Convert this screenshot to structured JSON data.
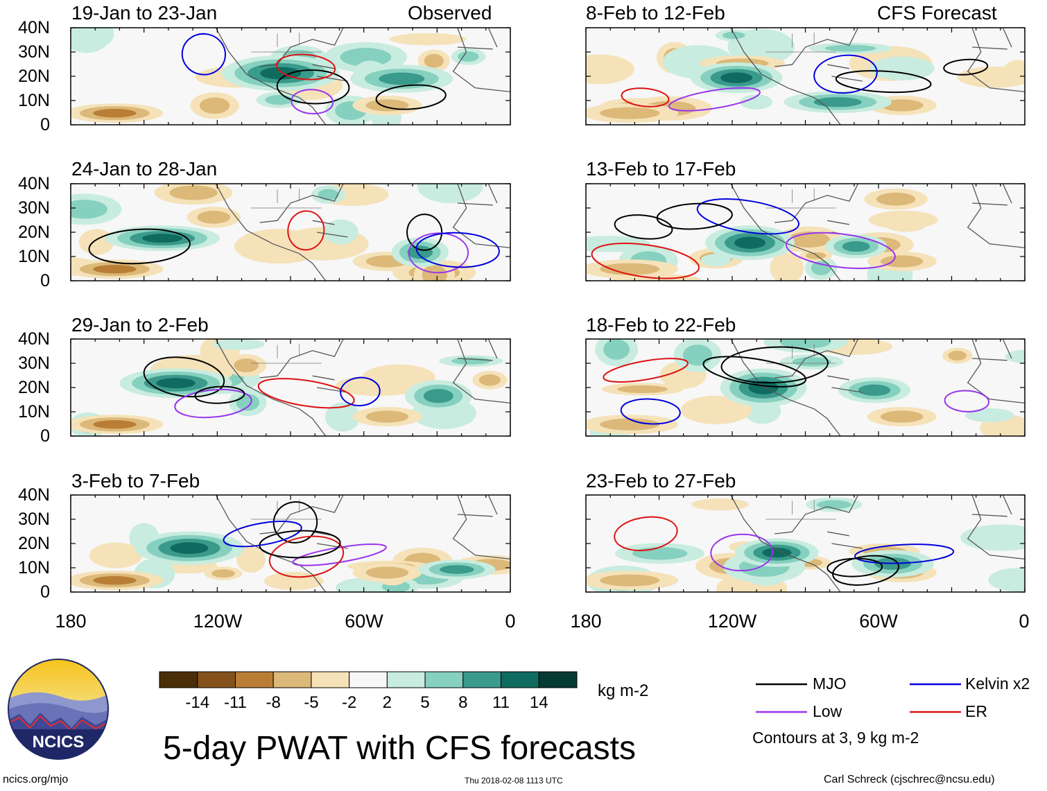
{
  "title": "5-day PWAT with CFS forecasts",
  "observed_label": "Observed",
  "forecast_label": "CFS Forecast",
  "panels_left": [
    {
      "period": "19-Jan to 23-Jan"
    },
    {
      "period": "24-Jan to 28-Jan"
    },
    {
      "period": "29-Jan to 2-Feb"
    },
    {
      "period": "3-Feb to 7-Feb"
    }
  ],
  "panels_right": [
    {
      "period": "8-Feb to 12-Feb"
    },
    {
      "period": "13-Feb to 17-Feb"
    },
    {
      "period": "18-Feb to 22-Feb"
    },
    {
      "period": "23-Feb to 27-Feb"
    }
  ],
  "lat_labels": [
    "40N",
    "30N",
    "20N",
    "10N",
    "0"
  ],
  "lon_labels": [
    "180",
    "120W",
    "60W",
    "0"
  ],
  "colorbar": {
    "unit": "kg m-2",
    "colors": [
      "#4a2e08",
      "#84521a",
      "#b97e36",
      "#dcb979",
      "#f5e2b9",
      "#f7f7f7",
      "#c8ecdf",
      "#86d0bf",
      "#3a9a8b",
      "#0f6b60",
      "#063b33"
    ],
    "tick_labels": [
      "-14",
      "-11",
      "-8",
      "-5",
      "-2",
      "2",
      "5",
      "8",
      "11",
      "14"
    ]
  },
  "legend": {
    "items": [
      {
        "label": "MJO",
        "color": "#000000"
      },
      {
        "label": "Kelvin x2",
        "color": "#0000dd"
      },
      {
        "label": "Low",
        "color": "#9933ee"
      },
      {
        "label": "ER",
        "color": "#dd1111"
      }
    ],
    "contours_note": "Contours at 3, 9 kg m-2"
  },
  "logo_text": "NCICS",
  "footer": {
    "url": "ncics.org/mjo",
    "timestamp": "Thu 2018-02-08 1113 UTC",
    "credit": "Carl Schreck (cjschrec@ncsu.edu)"
  }
}
